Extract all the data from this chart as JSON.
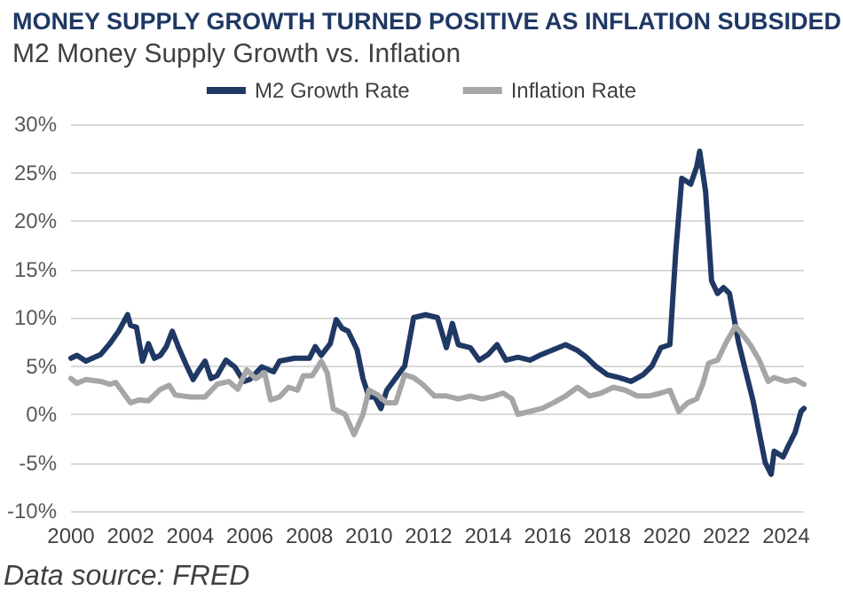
{
  "chart_data": {
    "type": "line",
    "title": "MONEY SUPPLY GROWTH TURNED POSITIVE AS INFLATION SUBSIDED",
    "subtitle": "M2 Money Supply Growth vs. Inflation",
    "annotations": [
      "Data source: FRED"
    ],
    "xlim": [
      2000,
      2024.6
    ],
    "xticks": [
      2000,
      2002,
      2004,
      2006,
      2008,
      2010,
      2012,
      2014,
      2016,
      2018,
      2020,
      2022,
      2024
    ],
    "ylim": [
      -10,
      30
    ],
    "yticks": [
      {
        "value": -10,
        "label": "-10%"
      },
      {
        "value": -5,
        "label": "-5%"
      },
      {
        "value": 0,
        "label": "0%"
      },
      {
        "value": 5,
        "label": "5%"
      },
      {
        "value": 10,
        "label": "10%"
      },
      {
        "value": 15,
        "label": "15%"
      },
      {
        "value": 20,
        "label": "20%"
      },
      {
        "value": 25,
        "label": "25%"
      },
      {
        "value": 30,
        "label": "30%"
      }
    ],
    "grid": "y",
    "legend": "top",
    "marker": "none",
    "line_style": "solid",
    "series": [
      {
        "name": "M2 Growth Rate",
        "color": "#1f3864",
        "x": [
          2000,
          2000.2,
          2000.5,
          2001,
          2001.3,
          2001.6,
          2001.9,
          2002,
          2002.2,
          2002.4,
          2002.6,
          2002.8,
          2003,
          2003.2,
          2003.4,
          2003.6,
          2003.9,
          2004.1,
          2004.3,
          2004.5,
          2004.7,
          2004.9,
          2005.2,
          2005.5,
          2005.8,
          2006,
          2006.4,
          2006.8,
          2007,
          2007.5,
          2008,
          2008.2,
          2008.4,
          2008.7,
          2008.9,
          2009.1,
          2009.3,
          2009.6,
          2009.8,
          2010,
          2010.2,
          2010.4,
          2010.6,
          2011.2,
          2011.5,
          2011.9,
          2012.3,
          2012.6,
          2012.8,
          2013,
          2013.4,
          2013.7,
          2014,
          2014.3,
          2014.6,
          2015,
          2015.4,
          2015.8,
          2016.2,
          2016.6,
          2017,
          2017.3,
          2017.6,
          2018,
          2018.4,
          2018.8,
          2019.2,
          2019.5,
          2019.8,
          2020.1,
          2020.3,
          2020.5,
          2020.8,
          2021,
          2021.1,
          2021.3,
          2021.5,
          2021.7,
          2021.9,
          2022.1,
          2022.4,
          2022.6,
          2022.9,
          2023.1,
          2023.3,
          2023.5,
          2023.6,
          2023.9,
          2024.1,
          2024.3,
          2024.5,
          2024.6
        ],
        "values": [
          5.8,
          6.1,
          5.5,
          6.2,
          7.3,
          8.6,
          10.3,
          9.2,
          9,
          5.5,
          7.3,
          5.8,
          6.1,
          7,
          8.6,
          7,
          4.9,
          3.6,
          4.6,
          5.5,
          3.7,
          4,
          5.6,
          4.9,
          3.4,
          3.6,
          4.9,
          4.4,
          5.5,
          5.8,
          5.8,
          7,
          6.1,
          7.3,
          9.8,
          8.9,
          8.6,
          6.7,
          3.7,
          1.8,
          1.8,
          0.6,
          2.5,
          5,
          10,
          10.3,
          10,
          6.9,
          9.4,
          7.2,
          6.9,
          5.6,
          6.2,
          7.2,
          5.6,
          5.9,
          5.6,
          6.2,
          6.7,
          7.2,
          6.6,
          5.9,
          5,
          4.1,
          3.8,
          3.4,
          4.1,
          5,
          6.9,
          7.2,
          16.9,
          24.4,
          23.8,
          25.6,
          27.2,
          23,
          13.8,
          12.5,
          13.1,
          12.5,
          7.5,
          5,
          1.3,
          -1.9,
          -5,
          -6.2,
          -3.8,
          -4.4,
          -3.1,
          -1.9,
          0.3,
          0.6
        ]
      },
      {
        "name": "Inflation Rate",
        "color": "#a6a6a6",
        "x": [
          2000,
          2000.2,
          2000.5,
          2001,
          2001.3,
          2001.5,
          2002,
          2002.3,
          2002.6,
          2003,
          2003.3,
          2003.5,
          2004,
          2004.5,
          2004.9,
          2005.3,
          2005.6,
          2005.9,
          2006.2,
          2006.5,
          2006.7,
          2007,
          2007.3,
          2007.6,
          2007.8,
          2008.1,
          2008.4,
          2008.6,
          2008.8,
          2009.2,
          2009.5,
          2009.8,
          2010,
          2010.3,
          2010.6,
          2010.9,
          2011.2,
          2011.5,
          2011.8,
          2012.2,
          2012.6,
          2013,
          2013.4,
          2013.8,
          2014.2,
          2014.5,
          2014.8,
          2015,
          2015.4,
          2015.8,
          2016.2,
          2016.6,
          2017,
          2017.4,
          2017.8,
          2018.2,
          2018.6,
          2019,
          2019.4,
          2019.8,
          2020.1,
          2020.4,
          2020.7,
          2021,
          2021.2,
          2021.4,
          2021.7,
          2022,
          2022.3,
          2022.5,
          2022.8,
          2023.1,
          2023.4,
          2023.6,
          2024,
          2024.3,
          2024.6
        ],
        "values": [
          3.7,
          3.2,
          3.6,
          3.4,
          3.1,
          3.3,
          1.2,
          1.5,
          1.4,
          2.6,
          3,
          2,
          1.8,
          1.8,
          3.1,
          3.4,
          2.6,
          4.6,
          3.7,
          4.3,
          1.5,
          1.8,
          2.8,
          2.5,
          4,
          4,
          5.5,
          4.3,
          0.6,
          0,
          -2.1,
          0,
          2.5,
          2,
          1.2,
          1.2,
          4.1,
          3.8,
          3.1,
          1.9,
          1.9,
          1.6,
          1.9,
          1.6,
          1.9,
          2.2,
          1.6,
          0,
          0.3,
          0.6,
          1.2,
          1.9,
          2.8,
          1.9,
          2.2,
          2.8,
          2.5,
          1.9,
          1.9,
          2.2,
          2.5,
          0.3,
          1.2,
          1.6,
          3.1,
          5.3,
          5.6,
          7.5,
          9.1,
          8.4,
          7.2,
          5.6,
          3.4,
          3.8,
          3.4,
          3.6,
          3.1
        ]
      }
    ]
  }
}
